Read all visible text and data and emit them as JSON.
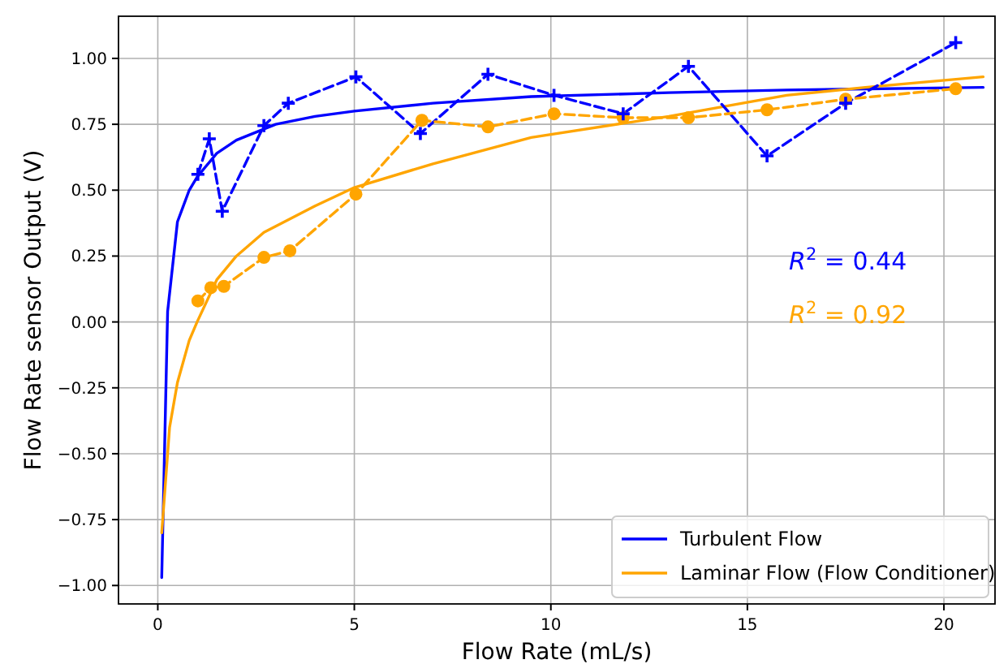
{
  "chart_data": {
    "type": "line",
    "xlabel": "Flow Rate (mL/s)",
    "ylabel": "Flow Rate sensor Output (V)",
    "xlim": [
      -1,
      21.3
    ],
    "ylim": [
      -1.07,
      1.16
    ],
    "xticks": [
      0,
      5,
      10,
      15,
      20
    ],
    "yticks": [
      {
        "value": -1,
        "label": "−1.00"
      },
      {
        "value": -0.75,
        "label": "−0.75"
      },
      {
        "value": -0.5,
        "label": "−0.50"
      },
      {
        "value": -0.25,
        "label": "−0.25"
      },
      {
        "value": 0,
        "label": "0.00"
      },
      {
        "value": 0.25,
        "label": "0.25"
      },
      {
        "value": 0.5,
        "label": "0.50"
      },
      {
        "value": 0.75,
        "label": "0.75"
      },
      {
        "value": 1,
        "label": "1.00"
      }
    ],
    "grid": true,
    "legend": "bottom right",
    "series": [
      {
        "name": "Turbulent Flow",
        "color": "#0000ff",
        "line_style": "solid",
        "marker": "none",
        "x": [
          0.1,
          0.25,
          0.5,
          0.8,
          1.0,
          1.5,
          2,
          3,
          4,
          5,
          7,
          9.5,
          13,
          16,
          21
        ],
        "values": [
          -0.97,
          0.04,
          0.38,
          0.5,
          0.55,
          0.64,
          0.69,
          0.75,
          0.78,
          0.8,
          0.83,
          0.855,
          0.87,
          0.88,
          0.89
        ]
      },
      {
        "name": "Laminar Flow (Flow Conditioner)",
        "color": "#ffa500",
        "line_style": "solid",
        "marker": "none",
        "x": [
          0.1,
          0.3,
          0.5,
          0.8,
          1.0,
          1.5,
          2,
          2.7,
          4,
          5,
          7,
          9.5,
          13,
          16,
          18,
          21
        ],
        "values": [
          -0.8,
          -0.4,
          -0.23,
          -0.07,
          0.0,
          0.16,
          0.25,
          0.34,
          0.44,
          0.51,
          0.6,
          0.7,
          0.78,
          0.86,
          0.89,
          0.93
        ]
      },
      {
        "color": "#0000ff",
        "line_style": "dashed",
        "marker": "cross",
        "x": [
          1.02,
          1.31,
          1.64,
          2.7,
          3.32,
          5.04,
          6.68,
          8.4,
          10.08,
          11.84,
          13.5,
          15.5,
          17.5,
          20.3
        ],
        "values": [
          0.56,
          0.695,
          0.42,
          0.745,
          0.83,
          0.93,
          0.715,
          0.94,
          0.86,
          0.79,
          0.97,
          0.63,
          0.83,
          1.06
        ]
      },
      {
        "color": "#ffa500",
        "line_style": "dashed",
        "marker": "circle",
        "x": [
          1.02,
          1.35,
          1.68,
          2.7,
          3.36,
          5.04,
          6.72,
          8.4,
          10.08,
          11.84,
          13.5,
          15.5,
          17.5,
          20.3
        ],
        "values": [
          0.08,
          0.13,
          0.135,
          0.245,
          0.27,
          0.485,
          0.765,
          0.74,
          0.79,
          0.775,
          0.775,
          0.805,
          0.845,
          0.885
        ]
      }
    ],
    "annotations": [
      "R$^{2}$ = 0.44",
      "R$^{2}$ = 0.92"
    ]
  }
}
